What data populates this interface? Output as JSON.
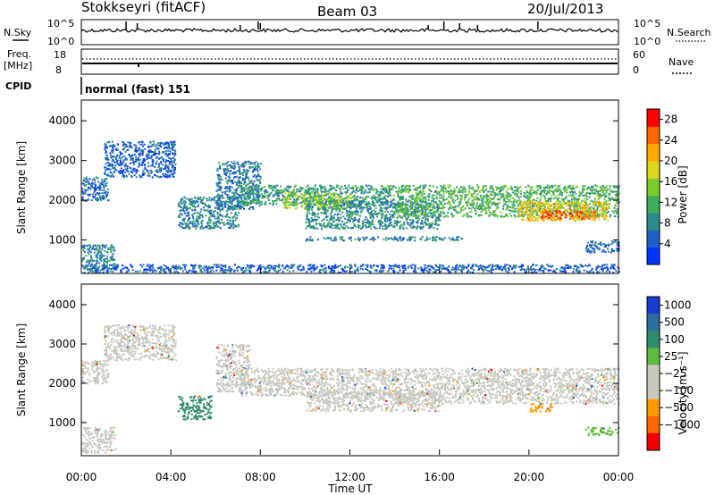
{
  "header": {
    "station": "Stokkseyri (fitACF)",
    "beam": "Beam 03",
    "date": "20/Jul/2013"
  },
  "top_panels": {
    "nsky": {
      "left_label": "N.Sky",
      "top_tick": "10^5",
      "bottom_tick": "10^0"
    },
    "nsearch": {
      "right_label": "N.Search",
      "top_tick": "10^5",
      "bottom_tick": "10^0"
    },
    "freq": {
      "left_label_1": "Freq.",
      "left_label_2": "[MHz]",
      "top_tick": "18",
      "bottom_tick": "8"
    },
    "nave": {
      "right_label": "Nave",
      "top_tick": "60",
      "bottom_tick": "0"
    },
    "cpid": {
      "label": "CPID",
      "value": "normal (fast) 151"
    }
  },
  "chart_data": [
    {
      "type": "heatmap",
      "name": "power-panel",
      "xlabel": "",
      "ylabel": "Slant Range [km]",
      "ylim": [
        180,
        4500
      ],
      "y_ticks": [
        "1000",
        "2000",
        "3000",
        "4000"
      ],
      "y_tick_values": [
        1000,
        2000,
        3000,
        4000
      ],
      "colorbar": {
        "label": "Power [dB]",
        "ticks": [
          "4",
          "8",
          "12",
          "16",
          "20",
          "24",
          "28"
        ],
        "tick_values": [
          4,
          8,
          12,
          16,
          20,
          24,
          28
        ],
        "range": [
          0,
          30
        ],
        "colors": [
          "#0033ff",
          "#1f5fc8",
          "#2e8b8b",
          "#3fae5a",
          "#7ccc2c",
          "#d8d820",
          "#ffaa00",
          "#ff6600",
          "#ff0000"
        ]
      },
      "regions": [
        {
          "x": [
            0.0,
            1.2
          ],
          "y": [
            2000,
            2600
          ],
          "dB": 6
        },
        {
          "x": [
            0.0,
            1.5
          ],
          "y": [
            250,
            900
          ],
          "dB": 8
        },
        {
          "x": [
            1.0,
            4.2
          ],
          "y": [
            2600,
            3500
          ],
          "dB": 5
        },
        {
          "x": [
            4.3,
            7.0
          ],
          "y": [
            1300,
            2100
          ],
          "dB": 8
        },
        {
          "x": [
            6.0,
            8.0
          ],
          "y": [
            1800,
            3000
          ],
          "dB": 7
        },
        {
          "x": [
            7.0,
            14.0
          ],
          "y": [
            1900,
            2400
          ],
          "dB": 10
        },
        {
          "x": [
            9.0,
            12.0
          ],
          "y": [
            1800,
            2200
          ],
          "dB": 16
        },
        {
          "x": [
            10.0,
            16.0
          ],
          "y": [
            1300,
            2000
          ],
          "dB": 9
        },
        {
          "x": [
            10.0,
            17.0
          ],
          "y": [
            1000,
            1100
          ],
          "dB": 8
        },
        {
          "x": [
            14.0,
            24.0
          ],
          "y": [
            1600,
            2400
          ],
          "dB": 12
        },
        {
          "x": [
            19.5,
            23.5
          ],
          "y": [
            1500,
            2000
          ],
          "dB": 20
        },
        {
          "x": [
            20.5,
            23.0
          ],
          "y": [
            1550,
            1750
          ],
          "dB": 26
        },
        {
          "x": [
            22.5,
            24.0
          ],
          "y": [
            700,
            1000
          ],
          "dB": 6
        },
        {
          "x": [
            0.0,
            24.0
          ],
          "y": [
            200,
            400
          ],
          "dB": 5
        }
      ]
    },
    {
      "type": "heatmap",
      "name": "velocity-panel",
      "xlabel": "Time UT",
      "ylabel": "Slant Range [km]",
      "ylim": [
        180,
        4500
      ],
      "xlim": [
        0,
        24
      ],
      "x_ticks": [
        "00:00",
        "04:00",
        "08:00",
        "12:00",
        "16:00",
        "20:00",
        "00:00"
      ],
      "x_tick_values": [
        0,
        4,
        8,
        12,
        16,
        20,
        24
      ],
      "y_ticks": [
        "1000",
        "2000",
        "3000",
        "4000"
      ],
      "y_tick_values": [
        1000,
        2000,
        3000,
        4000
      ],
      "colorbar": {
        "label": "Velocity [m s⁻¹]",
        "ticks": [
          "1000",
          "500",
          "100",
          "25",
          "−25",
          "−100",
          "−500",
          "−1000"
        ],
        "tick_values": [
          1000,
          500,
          100,
          25,
          -25,
          -100,
          -500,
          -1000
        ],
        "colors": [
          "#1a3ccc",
          "#2e6e9e",
          "#2e8b6e",
          "#5dbb3f",
          "#c8c8bf",
          "#c8c8bf",
          "#ff9900",
          "#ff6600",
          "#ee0000"
        ]
      },
      "regions": [
        {
          "x": [
            0.0,
            1.2
          ],
          "y": [
            2000,
            2600
          ],
          "v": 0
        },
        {
          "x": [
            0.0,
            1.5
          ],
          "y": [
            250,
            900
          ],
          "v": 0
        },
        {
          "x": [
            1.0,
            4.2
          ],
          "y": [
            2600,
            3500
          ],
          "v": 0
        },
        {
          "x": [
            4.3,
            5.8
          ],
          "y": [
            1100,
            1700
          ],
          "v": 300
        },
        {
          "x": [
            6.0,
            7.5
          ],
          "y": [
            1800,
            3000
          ],
          "v": 0
        },
        {
          "x": [
            7.0,
            14.0
          ],
          "y": [
            1700,
            2400
          ],
          "v": 0
        },
        {
          "x": [
            10.0,
            16.0
          ],
          "y": [
            1300,
            1800
          ],
          "v": 0
        },
        {
          "x": [
            14.0,
            24.0
          ],
          "y": [
            1500,
            2400
          ],
          "v": 0
        },
        {
          "x": [
            20.0,
            21.0
          ],
          "y": [
            1300,
            1500
          ],
          "v": -200
        },
        {
          "x": [
            22.5,
            24.0
          ],
          "y": [
            700,
            900
          ],
          "v": 120
        }
      ]
    }
  ]
}
